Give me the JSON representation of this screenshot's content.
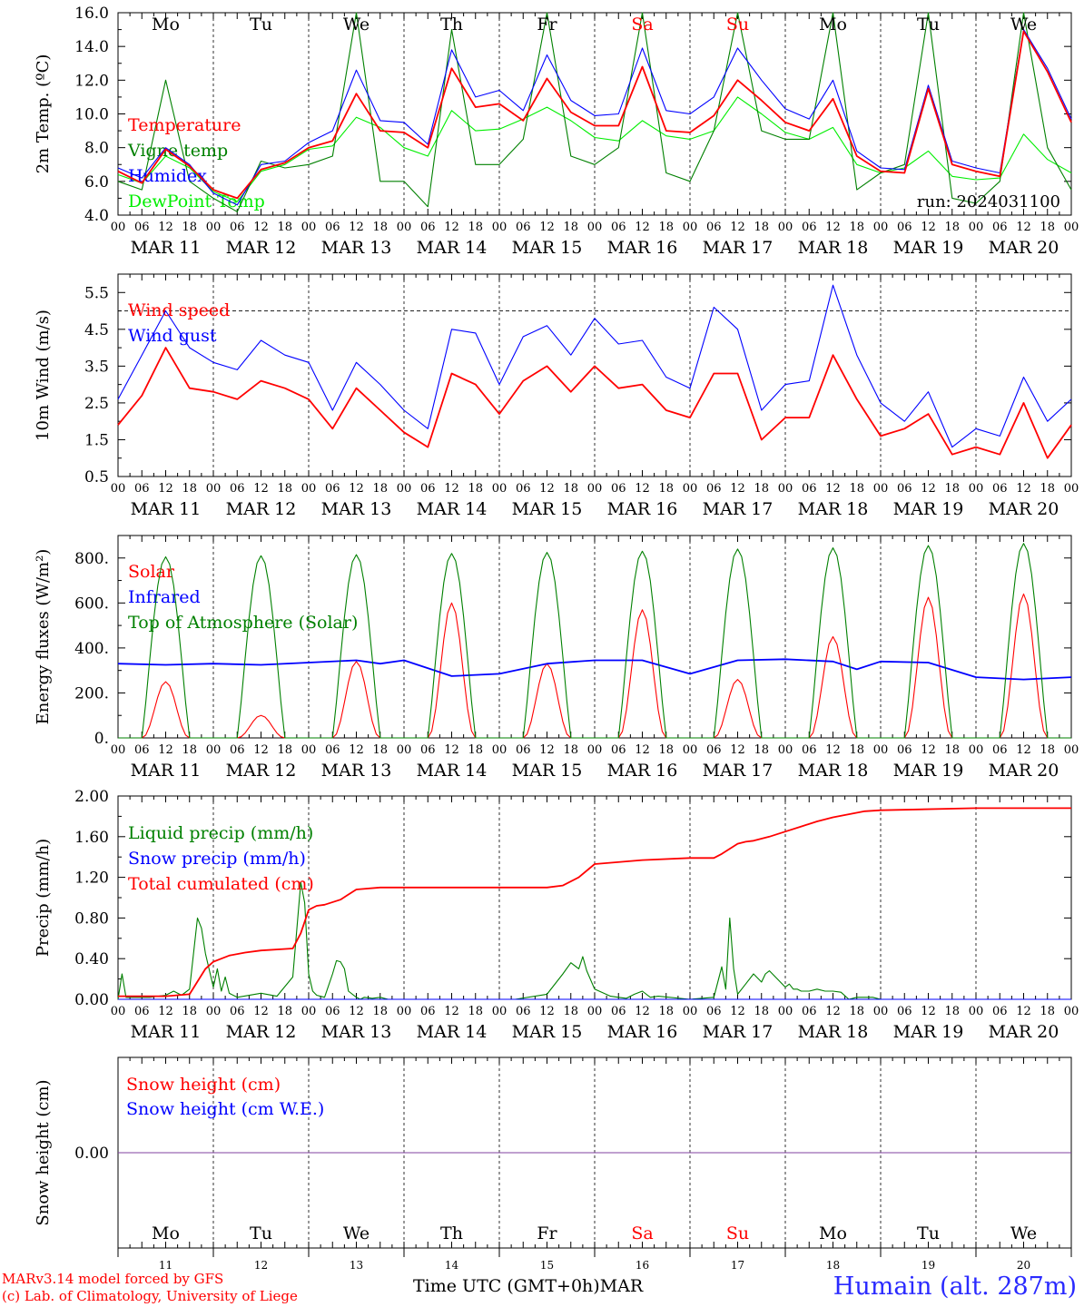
{
  "chart_data": [
    {
      "type": "line",
      "ylabel": "2m Temp. (ºC)",
      "ylim": [
        4.0,
        16.0
      ],
      "yticks": [
        "4.0",
        "6.0",
        "8.0",
        "10.0",
        "12.0",
        "14.0",
        "16.0"
      ],
      "xlim_hours": [
        0,
        240
      ],
      "run_label": "run: 2024031100",
      "x_hours": [
        0,
        6,
        12,
        18,
        24,
        30,
        36,
        42,
        48,
        54,
        60,
        66,
        72,
        78,
        84,
        90,
        96,
        102,
        108,
        114,
        120,
        126,
        132,
        138,
        144,
        150,
        156,
        162,
        168,
        174,
        180,
        186,
        192,
        198,
        204,
        210,
        216,
        222,
        228,
        234,
        240
      ],
      "series": [
        {
          "name": "Temperature",
          "color": "#ff0000",
          "values": [
            6.6,
            5.9,
            7.9,
            6.9,
            5.5,
            5.0,
            6.7,
            7.1,
            8.0,
            8.4,
            11.2,
            9.0,
            8.9,
            8.0,
            12.7,
            10.4,
            10.6,
            9.6,
            12.1,
            10.1,
            9.3,
            9.3,
            12.8,
            9.0,
            8.9,
            9.9,
            12.0,
            10.8,
            9.5,
            9.0,
            10.9,
            7.5,
            6.6,
            6.5,
            11.5,
            7.0,
            6.6,
            6.3,
            14.9,
            12.5,
            9.5
          ]
        },
        {
          "name": "Vigne temp",
          "color": "#008000",
          "values": [
            6.0,
            5.5,
            12.0,
            6.0,
            5.0,
            4.2,
            7.2,
            6.8,
            7.0,
            7.5,
            16.0,
            6.0,
            6.0,
            4.5,
            15.0,
            7.0,
            7.0,
            8.5,
            16.0,
            7.5,
            7.0,
            8.0,
            16.0,
            6.5,
            6.0,
            9.0,
            16.0,
            9.0,
            8.5,
            8.5,
            16.0,
            5.5,
            6.5,
            7.0,
            16.0,
            5.0,
            4.7,
            6.0,
            16.0,
            8.0,
            5.5
          ]
        },
        {
          "name": "Humidex",
          "color": "#0000ff",
          "values": [
            6.8,
            6.2,
            8.0,
            7.0,
            5.3,
            4.6,
            7.0,
            7.2,
            8.3,
            9.0,
            12.6,
            9.6,
            9.5,
            8.2,
            13.8,
            11.0,
            11.4,
            10.2,
            13.5,
            10.8,
            9.9,
            10.0,
            13.9,
            10.2,
            10.0,
            11.0,
            13.9,
            12.0,
            10.3,
            9.7,
            12.0,
            7.8,
            6.8,
            6.7,
            11.7,
            7.2,
            6.8,
            6.5,
            15.0,
            12.7,
            9.7
          ]
        },
        {
          "name": "DewPoint Temp",
          "color": "#00ee00",
          "values": [
            6.4,
            5.9,
            7.5,
            6.8,
            5.4,
            4.8,
            6.6,
            7.0,
            7.9,
            8.1,
            9.8,
            9.2,
            8.0,
            7.5,
            10.2,
            9.0,
            9.1,
            9.7,
            10.4,
            9.6,
            8.6,
            8.4,
            9.6,
            8.7,
            8.5,
            9.0,
            11.0,
            10.0,
            8.9,
            8.5,
            9.2,
            7.0,
            6.5,
            6.8,
            7.8,
            6.3,
            6.1,
            6.2,
            8.8,
            7.3,
            6.5
          ]
        }
      ]
    },
    {
      "type": "line",
      "ylabel": "10m Wind (m/s)",
      "ylim": [
        0.5,
        6.0
      ],
      "yticks": [
        "0.5",
        "1.5",
        "2.5",
        "3.5",
        "4.5",
        "5.5"
      ],
      "reference_line": 5.0,
      "xlim_hours": [
        0,
        240
      ],
      "x_hours": [
        0,
        6,
        12,
        18,
        24,
        30,
        36,
        42,
        48,
        54,
        60,
        66,
        72,
        78,
        84,
        90,
        96,
        102,
        108,
        114,
        120,
        126,
        132,
        138,
        144,
        150,
        156,
        162,
        168,
        174,
        180,
        186,
        192,
        198,
        204,
        210,
        216,
        222,
        228,
        234,
        240
      ],
      "series": [
        {
          "name": "Wind speed",
          "color": "#ff0000",
          "values": [
            1.9,
            2.7,
            4.0,
            2.9,
            2.8,
            2.6,
            3.1,
            2.9,
            2.6,
            1.8,
            2.9,
            2.3,
            1.7,
            1.3,
            3.3,
            3.0,
            2.2,
            3.1,
            3.5,
            2.8,
            3.5,
            2.9,
            3.0,
            2.3,
            2.1,
            3.3,
            3.3,
            1.5,
            2.1,
            2.1,
            3.8,
            2.6,
            1.6,
            1.8,
            2.2,
            1.1,
            1.3,
            1.1,
            2.5,
            1.0,
            1.9
          ]
        },
        {
          "name": "Wind gust",
          "color": "#0000ff",
          "values": [
            2.6,
            3.8,
            5.0,
            4.0,
            3.6,
            3.4,
            4.2,
            3.8,
            3.6,
            2.3,
            3.6,
            3.0,
            2.3,
            1.8,
            4.5,
            4.4,
            3.0,
            4.3,
            4.6,
            3.8,
            4.8,
            4.1,
            4.2,
            3.2,
            2.9,
            5.1,
            4.5,
            2.3,
            3.0,
            3.1,
            5.7,
            3.8,
            2.5,
            2.0,
            2.8,
            1.3,
            1.8,
            1.6,
            3.2,
            2.0,
            2.6
          ]
        }
      ]
    },
    {
      "type": "line",
      "ylabel": "Energy fluxes (W/m²)",
      "ylim": [
        0,
        900
      ],
      "yticks": [
        "0.",
        "200.",
        "400.",
        "600.",
        "800."
      ],
      "xlim_hours": [
        0,
        240
      ],
      "daylight_hours": [
        6,
        18
      ],
      "series": [
        {
          "name": "Solar",
          "color": "#ff0000",
          "daily_peaks": [
            250,
            100,
            340,
            600,
            330,
            570,
            260,
            450,
            625,
            640
          ]
        },
        {
          "name": "Infrared",
          "color": "#0000ff",
          "x_hours": [
            0,
            12,
            24,
            36,
            48,
            60,
            66,
            72,
            84,
            96,
            108,
            120,
            132,
            144,
            156,
            168,
            180,
            186,
            192,
            204,
            216,
            228,
            240
          ],
          "values": [
            330,
            325,
            330,
            325,
            335,
            345,
            330,
            345,
            275,
            285,
            330,
            345,
            345,
            285,
            345,
            350,
            340,
            305,
            340,
            335,
            270,
            260,
            270
          ]
        },
        {
          "name": "Top of Atmosphere (Solar)",
          "color": "#008000",
          "daily_peaks": [
            805,
            810,
            815,
            820,
            825,
            830,
            840,
            845,
            855,
            865
          ]
        }
      ]
    },
    {
      "type": "line",
      "ylabel": "Precip (mm/h)",
      "ylim": [
        0,
        2.0
      ],
      "yticks": [
        "0.00",
        "0.40",
        "0.80",
        "1.20",
        "1.60",
        "2.00"
      ],
      "xlim_hours": [
        0,
        240
      ],
      "series": [
        {
          "name": "Liquid precip (mm/h)",
          "color": "#008000",
          "x_hours": [
            0,
            1,
            2,
            4,
            8,
            12,
            14,
            16,
            18,
            20,
            21,
            22,
            24,
            25,
            26,
            27,
            28,
            30,
            36,
            40,
            44,
            46,
            47,
            48,
            49,
            50,
            52,
            54,
            55,
            56,
            57,
            58,
            60,
            61,
            62,
            64,
            66,
            68,
            72,
            96,
            100,
            108,
            112,
            114,
            116,
            117,
            118,
            120,
            124,
            126,
            128,
            130,
            132,
            134,
            136,
            144,
            150,
            152,
            153,
            154,
            155,
            156,
            157,
            158,
            160,
            162,
            163,
            164,
            166,
            168,
            169,
            170,
            171,
            172,
            174,
            176,
            178,
            180,
            182,
            184,
            186,
            190,
            192,
            210,
            240
          ],
          "values": [
            0.0,
            0.25,
            0.02,
            0.02,
            0.02,
            0.04,
            0.08,
            0.04,
            0.1,
            0.8,
            0.7,
            0.45,
            0.12,
            0.3,
            0.08,
            0.22,
            0.06,
            0.02,
            0.06,
            0.03,
            0.22,
            1.15,
            0.95,
            0.25,
            0.08,
            0.04,
            0.02,
            0.25,
            0.38,
            0.37,
            0.3,
            0.08,
            0.02,
            0.0,
            0.02,
            0.01,
            0.02,
            0.0,
            0.0,
            0.0,
            0.0,
            0.05,
            0.25,
            0.36,
            0.3,
            0.42,
            0.28,
            0.1,
            0.03,
            0.02,
            0.01,
            0.05,
            0.08,
            0.02,
            0.03,
            0.0,
            0.02,
            0.32,
            0.1,
            0.8,
            0.3,
            0.05,
            0.1,
            0.15,
            0.25,
            0.17,
            0.25,
            0.28,
            0.2,
            0.12,
            0.15,
            0.1,
            0.1,
            0.08,
            0.08,
            0.1,
            0.08,
            0.08,
            0.07,
            0.0,
            0.02,
            0.02,
            0.0,
            0.0,
            0.0
          ]
        },
        {
          "name": "Snow precip (mm/h)",
          "color": "#0000ff",
          "x_hours": [
            0,
            240
          ],
          "values": [
            0.0,
            0.0
          ]
        },
        {
          "name": "Total cumulated (cm)",
          "color": "#ff0000",
          "x_hours": [
            0,
            12,
            18,
            22,
            24,
            26,
            28,
            32,
            36,
            44,
            46,
            48,
            50,
            52,
            56,
            60,
            66,
            72,
            96,
            108,
            112,
            116,
            120,
            132,
            144,
            150,
            152,
            156,
            158,
            160,
            164,
            168,
            172,
            176,
            180,
            188,
            192,
            216,
            240
          ],
          "values": [
            0.03,
            0.03,
            0.05,
            0.3,
            0.37,
            0.4,
            0.43,
            0.46,
            0.48,
            0.5,
            0.65,
            0.88,
            0.92,
            0.93,
            0.98,
            1.08,
            1.1,
            1.1,
            1.1,
            1.1,
            1.12,
            1.2,
            1.33,
            1.37,
            1.39,
            1.39,
            1.43,
            1.53,
            1.55,
            1.56,
            1.6,
            1.65,
            1.7,
            1.75,
            1.79,
            1.85,
            1.86,
            1.88,
            1.88
          ]
        }
      ]
    },
    {
      "type": "line",
      "ylabel": "Snow height (cm)",
      "ytick_labels": [
        "0.00"
      ],
      "xlim_hours": [
        0,
        240
      ],
      "series": [
        {
          "name": "Snow height (cm)",
          "color": "#ff0000",
          "x_hours": [
            0,
            240
          ],
          "values": [
            0.0,
            0.0
          ]
        },
        {
          "name": "Snow height (cm W.E.)",
          "color": "#0000ff",
          "x_hours": [
            0,
            240
          ],
          "values": [
            0.0,
            0.0
          ]
        }
      ]
    }
  ],
  "x_hour_tick_labels": [
    "00",
    "06",
    "12",
    "18"
  ],
  "dates": [
    "MAR 11",
    "MAR 12",
    "MAR 13",
    "MAR 14",
    "MAR 15",
    "MAR 16",
    "MAR 17",
    "MAR 18",
    "MAR 19",
    "MAR 20"
  ],
  "days": [
    {
      "label": "Mo",
      "weekend": false
    },
    {
      "label": "Tu",
      "weekend": false
    },
    {
      "label": "We",
      "weekend": false
    },
    {
      "label": "Th",
      "weekend": false
    },
    {
      "label": "Fr",
      "weekend": false
    },
    {
      "label": "Sa",
      "weekend": true
    },
    {
      "label": "Su",
      "weekend": true
    },
    {
      "label": "Mo",
      "weekend": false
    },
    {
      "label": "Tu",
      "weekend": false
    },
    {
      "label": "We",
      "weekend": false
    }
  ],
  "day_numbers": [
    "11",
    "12",
    "13",
    "14",
    "15",
    "16",
    "17",
    "18",
    "19",
    "20"
  ],
  "bottom_axis_label": "Time UTC (GMT+0h)",
  "month_label": "MAR",
  "station_label": "Humain (alt. 287m)",
  "credit_line_1": "MARv3.14 model forced by GFS",
  "credit_line_2": "(c) Lab. of Climatology, University of Liege",
  "colors": {
    "weekend": "#ff0000",
    "snow_line": "#8040a0"
  }
}
